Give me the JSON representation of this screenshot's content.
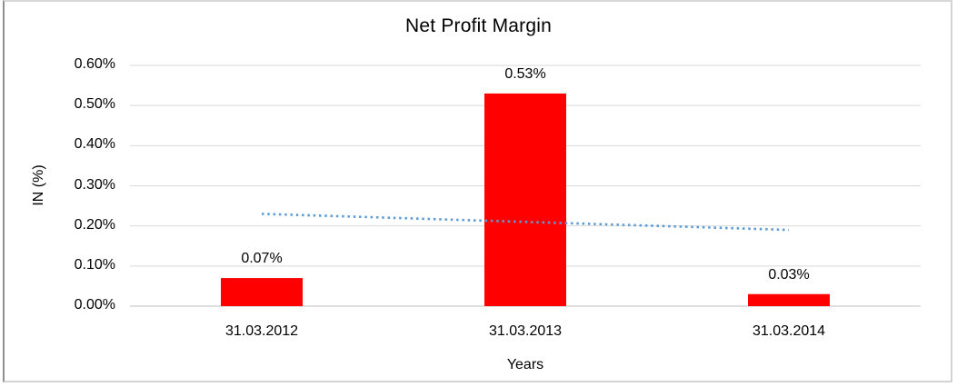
{
  "window": {
    "background": "#ffffff",
    "frame_border_top": "#d8d8d8",
    "frame_border_left": "#8f8f8f",
    "frame_border_right": "#d3d3d3",
    "frame_border_bottom": "#d3d3d3"
  },
  "chart_data": {
    "type": "bar",
    "title": "Net Profit Margin",
    "xlabel": "Years",
    "ylabel": "IN (%)",
    "categories": [
      "31.03.2012",
      "31.03.2013",
      "31.03.2014"
    ],
    "values": [
      0.07,
      0.53,
      0.03
    ],
    "data_labels": [
      "0.07%",
      "0.53%",
      "0.03%"
    ],
    "ylim": [
      0,
      0.6
    ],
    "ytick_values": [
      0,
      0.1,
      0.2,
      0.3,
      0.4,
      0.5,
      0.6
    ],
    "ytick_labels": [
      "0.00%",
      "0.10%",
      "0.20%",
      "0.30%",
      "0.40%",
      "0.50%",
      "0.60%"
    ],
    "grid": true,
    "legend": false,
    "bar_color": "#ff0000",
    "gridline_color": "#d9d9d9",
    "axis_line_color": "#bfbfbf",
    "text_color": "#000000",
    "trendline": {
      "kind": "linear",
      "style": "dotted",
      "color": "#5b9bd5",
      "values": [
        0.23,
        0.21,
        0.19
      ]
    }
  }
}
